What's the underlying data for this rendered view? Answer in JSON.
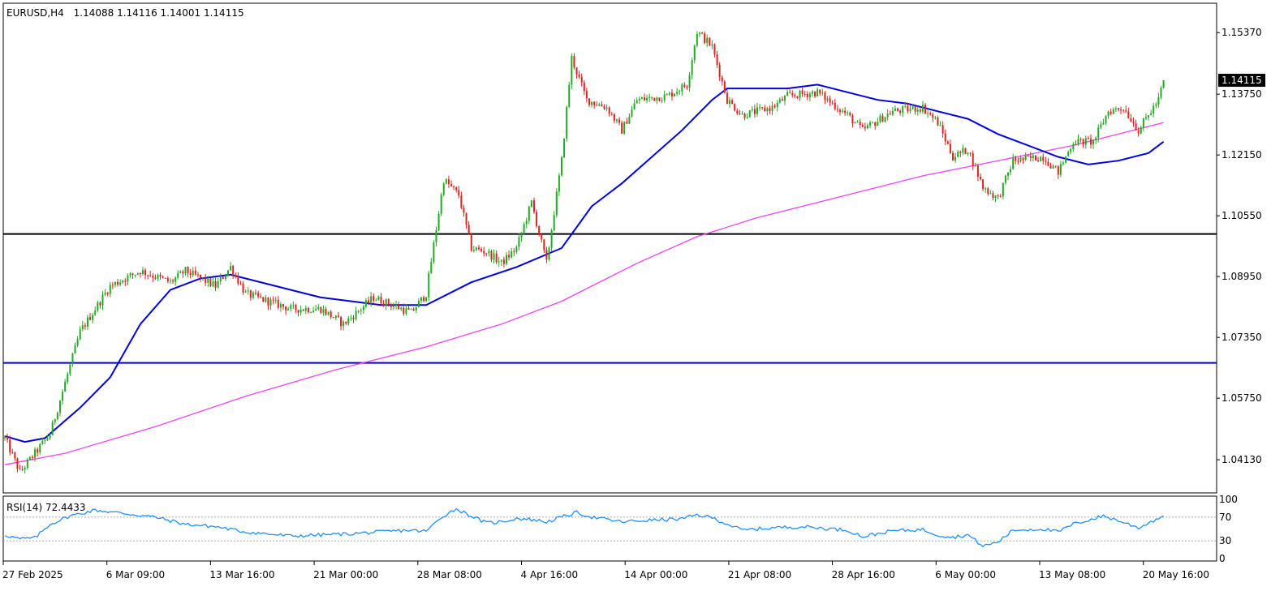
{
  "chart_data": [
    {
      "type": "candlestick",
      "header": {
        "symbol": "EURUSD,H4",
        "ohlc": "1.14088 1.14116 1.14001 1.14115"
      },
      "price_ticks": [
        "1.15370",
        "1.13750",
        "1.12150",
        "1.10550",
        "1.08950",
        "1.07350",
        "1.05750",
        "1.04130"
      ],
      "current_price": "1.14115",
      "x_labels": [
        "27 Feb 2025",
        "6 Mar 09:00",
        "13 Mar 16:00",
        "21 Mar 00:00",
        "28 Mar 08:00",
        "4 Apr 16:00",
        "14 Apr 00:00",
        "21 Apr 08:00",
        "28 Apr 16:00",
        "6 May 00:00",
        "13 May 08:00",
        "20 May 16:00"
      ],
      "ylim": [
        1.033,
        1.161
      ],
      "horizontal_lines": [
        {
          "value": 1.1007,
          "color": "#000000"
        },
        {
          "value": 1.0668,
          "color": "#0000cc"
        }
      ],
      "colors": {
        "bull": "#22aa22",
        "bear": "#dd2222",
        "ma_fast": "#0000dd",
        "ma_slow": "#ee44ee"
      },
      "price_path": [
        [
          0,
          1.047
        ],
        [
          6,
          1.038
        ],
        [
          18,
          1.048
        ],
        [
          30,
          1.075
        ],
        [
          42,
          1.087
        ],
        [
          54,
          1.091
        ],
        [
          66,
          1.088
        ],
        [
          72,
          1.091
        ],
        [
          84,
          1.087
        ],
        [
          90,
          1.092
        ],
        [
          96,
          1.085
        ],
        [
          114,
          1.081
        ],
        [
          126,
          1.081
        ],
        [
          135,
          1.077
        ],
        [
          147,
          1.084
        ],
        [
          162,
          1.08
        ],
        [
          168,
          1.085
        ],
        [
          175,
          1.115
        ],
        [
          181,
          1.111
        ],
        [
          186,
          1.097
        ],
        [
          192,
          1.096
        ],
        [
          198,
          1.093
        ],
        [
          204,
          1.097
        ],
        [
          210,
          1.109
        ],
        [
          216,
          1.093
        ],
        [
          222,
          1.12
        ],
        [
          226,
          1.147
        ],
        [
          232,
          1.136
        ],
        [
          240,
          1.134
        ],
        [
          246,
          1.128
        ],
        [
          252,
          1.136
        ],
        [
          264,
          1.137
        ],
        [
          272,
          1.14
        ],
        [
          276,
          1.154
        ],
        [
          282,
          1.15
        ],
        [
          288,
          1.136
        ],
        [
          294,
          1.132
        ],
        [
          306,
          1.134
        ],
        [
          312,
          1.137
        ],
        [
          324,
          1.138
        ],
        [
          336,
          1.132
        ],
        [
          342,
          1.128
        ],
        [
          354,
          1.133
        ],
        [
          366,
          1.134
        ],
        [
          372,
          1.13
        ],
        [
          378,
          1.121
        ],
        [
          384,
          1.123
        ],
        [
          390,
          1.113
        ],
        [
          396,
          1.11
        ],
        [
          402,
          1.12
        ],
        [
          414,
          1.121
        ],
        [
          420,
          1.117
        ],
        [
          426,
          1.125
        ],
        [
          434,
          1.125
        ],
        [
          440,
          1.133
        ],
        [
          446,
          1.134
        ],
        [
          452,
          1.128
        ],
        [
          460,
          1.136
        ],
        [
          462,
          1.1412
        ]
      ],
      "ma_fast": [
        [
          0,
          1.0475
        ],
        [
          8,
          1.046
        ],
        [
          16,
          1.047
        ],
        [
          30,
          1.055
        ],
        [
          42,
          1.063
        ],
        [
          54,
          1.077
        ],
        [
          66,
          1.086
        ],
        [
          78,
          1.089
        ],
        [
          90,
          1.09
        ],
        [
          108,
          1.087
        ],
        [
          126,
          1.084
        ],
        [
          150,
          1.082
        ],
        [
          168,
          1.082
        ],
        [
          186,
          1.088
        ],
        [
          204,
          1.092
        ],
        [
          222,
          1.097
        ],
        [
          234,
          1.108
        ],
        [
          246,
          1.114
        ],
        [
          258,
          1.121
        ],
        [
          270,
          1.128
        ],
        [
          282,
          1.136
        ],
        [
          288,
          1.139
        ],
        [
          300,
          1.139
        ],
        [
          312,
          1.139
        ],
        [
          324,
          1.14
        ],
        [
          336,
          1.138
        ],
        [
          348,
          1.136
        ],
        [
          360,
          1.135
        ],
        [
          372,
          1.133
        ],
        [
          384,
          1.131
        ],
        [
          396,
          1.127
        ],
        [
          408,
          1.124
        ],
        [
          420,
          1.121
        ],
        [
          432,
          1.119
        ],
        [
          444,
          1.12
        ],
        [
          456,
          1.122
        ],
        [
          462,
          1.125
        ]
      ],
      "ma_slow": [
        [
          0,
          1.04
        ],
        [
          24,
          1.043
        ],
        [
          60,
          1.05
        ],
        [
          96,
          1.058
        ],
        [
          132,
          1.065
        ],
        [
          168,
          1.071
        ],
        [
          198,
          1.077
        ],
        [
          222,
          1.083
        ],
        [
          252,
          1.093
        ],
        [
          276,
          1.1
        ],
        [
          300,
          1.105
        ],
        [
          336,
          1.111
        ],
        [
          366,
          1.116
        ],
        [
          396,
          1.12
        ],
        [
          426,
          1.124
        ],
        [
          462,
          1.13
        ]
      ]
    },
    {
      "type": "line",
      "label": "RSI(14) 72.4433",
      "ticks": [
        "100",
        "70",
        "30",
        "0"
      ],
      "levels": [
        70,
        30
      ],
      "ylim": [
        0,
        100
      ],
      "color": "#1e90ff",
      "points": [
        [
          0,
          40
        ],
        [
          6,
          33
        ],
        [
          12,
          35
        ],
        [
          18,
          58
        ],
        [
          26,
          72
        ],
        [
          36,
          82
        ],
        [
          46,
          77
        ],
        [
          60,
          70
        ],
        [
          72,
          58
        ],
        [
          84,
          54
        ],
        [
          96,
          45
        ],
        [
          114,
          38
        ],
        [
          126,
          40
        ],
        [
          138,
          42
        ],
        [
          150,
          45
        ],
        [
          160,
          48
        ],
        [
          168,
          46
        ],
        [
          174,
          70
        ],
        [
          180,
          84
        ],
        [
          186,
          72
        ],
        [
          192,
          60
        ],
        [
          198,
          62
        ],
        [
          204,
          68
        ],
        [
          210,
          66
        ],
        [
          216,
          62
        ],
        [
          222,
          70
        ],
        [
          228,
          78
        ],
        [
          234,
          70
        ],
        [
          246,
          62
        ],
        [
          258,
          65
        ],
        [
          270,
          67
        ],
        [
          276,
          74
        ],
        [
          282,
          69
        ],
        [
          294,
          48
        ],
        [
          306,
          52
        ],
        [
          318,
          54
        ],
        [
          330,
          50
        ],
        [
          336,
          48
        ],
        [
          342,
          37
        ],
        [
          348,
          42
        ],
        [
          354,
          47
        ],
        [
          366,
          49
        ],
        [
          372,
          40
        ],
        [
          378,
          36
        ],
        [
          384,
          40
        ],
        [
          390,
          21
        ],
        [
          396,
          28
        ],
        [
          402,
          48
        ],
        [
          414,
          50
        ],
        [
          420,
          45
        ],
        [
          426,
          58
        ],
        [
          438,
          72
        ],
        [
          444,
          64
        ],
        [
          452,
          52
        ],
        [
          462,
          72.4
        ]
      ]
    }
  ]
}
